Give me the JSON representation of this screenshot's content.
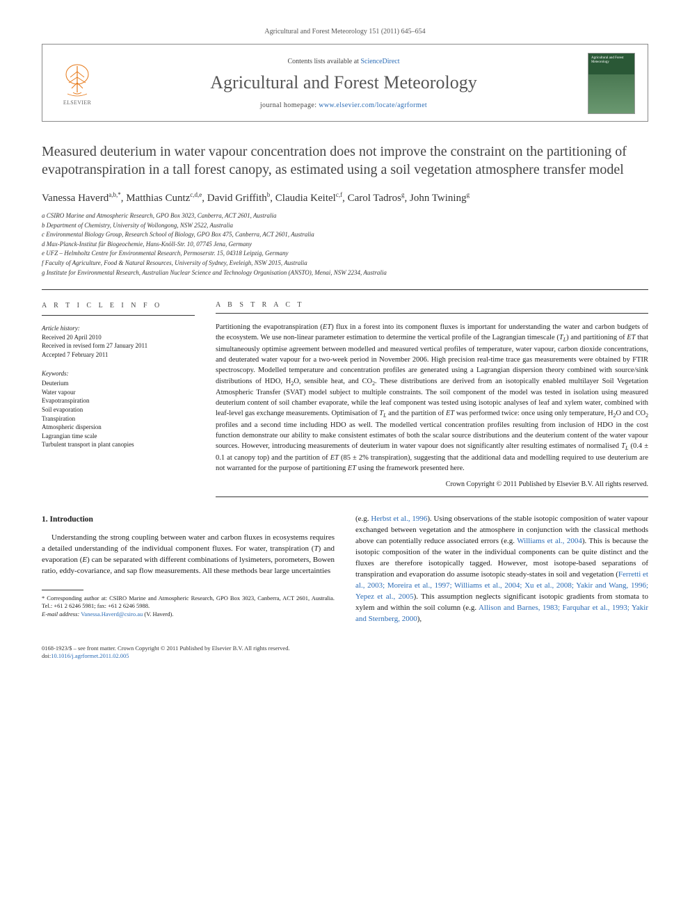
{
  "header": {
    "running": "Agricultural and Forest Meteorology 151 (2011) 645–654"
  },
  "masthead": {
    "contents_prefix": "Contents lists available at ",
    "contents_link": "ScienceDirect",
    "journal_title": "Agricultural and Forest Meteorology",
    "homepage_prefix": "journal homepage: ",
    "homepage_url": "www.elsevier.com/locate/agrformet",
    "publisher_label": "ELSEVIER",
    "cover_label": "Agricultural and Forest Meteorology"
  },
  "article": {
    "title": "Measured deuterium in water vapour concentration does not improve the constraint on the partitioning of evapotranspiration in a tall forest canopy, as estimated using a soil vegetation atmosphere transfer model",
    "authors_html": "Vanessa Haverd<sup>a,b,*</sup>, Matthias Cuntz<sup>c,d,e</sup>, David Griffith<sup>b</sup>, Claudia Keitel<sup>c,f</sup>, Carol Tadros<sup>g</sup>, John Twining<sup>g</sup>",
    "affiliations": [
      "a CSIRO Marine and Atmospheric Research, GPO Box 3023, Canberra, ACT 2601, Australia",
      "b Department of Chemistry, University of Wollongong, NSW 2522, Australia",
      "c Environmental Biology Group, Research School of Biology, GPO Box 475, Canberra, ACT 2601, Australia",
      "d Max-Planck-Institut für Biogeochemie, Hans-Knöll-Str. 10, 07745 Jena, Germany",
      "e UFZ – Helmholtz Centre for Environmental Research, Permoserstr. 15, 04318 Leipzig, Germany",
      "f Faculty of Agriculture, Food & Natural Resources, University of Sydney, Eveleigh, NSW 2015, Australia",
      "g Institute for Environmental Research, Australian Nuclear Science and Technology Organisation (ANSTO), Menai, NSW 2234, Australia"
    ]
  },
  "info": {
    "heading": "A R T I C L E   I N F O",
    "history_label": "Article history:",
    "history": [
      "Received 20 April 2010",
      "Received in revised form 27 January 2011",
      "Accepted 7 February 2011"
    ],
    "keywords_label": "Keywords:",
    "keywords": [
      "Deuterium",
      "Water vapour",
      "Evapotranspiration",
      "Soil evaporation",
      "Transpiration",
      "Atmospheric dispersion",
      "Lagrangian time scale",
      "Turbulent transport in plant canopies"
    ]
  },
  "abstract": {
    "heading": "A B S T R A C T",
    "text_html": "Partitioning the evapotranspiration (<em>ET</em>) flux in a forest into its component fluxes is important for understanding the water and carbon budgets of the ecosystem. We use non-linear parameter estimation to determine the vertical profile of the Lagrangian timescale (<em>T<sub>L</sub></em>) and partitioning of <em>ET</em> that simultaneously optimise agreement between modelled and measured vertical profiles of temperature, water vapour, carbon dioxide concentrations, and deuterated water vapour for a two-week period in November 2006. High precision real-time trace gas measurements were obtained by FTIR spectroscopy. Modelled temperature and concentration profiles are generated using a Lagrangian dispersion theory combined with source/sink distributions of HDO, H<sub>2</sub>O, sensible heat, and CO<sub>2</sub>. These distributions are derived from an isotopically enabled multilayer Soil Vegetation Atmospheric Transfer (SVAT) model subject to multiple constraints. The soil component of the model was tested in isolation using measured deuterium content of soil chamber evaporate, while the leaf component was tested using isotopic analyses of leaf and xylem water, combined with leaf-level gas exchange measurements. Optimisation of <em>T<sub>L</sub></em> and the partition of <em>ET</em> was performed twice: once using only temperature, H<sub>2</sub>O and CO<sub>2</sub> profiles and a second time including HDO as well. The modelled vertical concentration profiles resulting from inclusion of HDO in the cost function demonstrate our ability to make consistent estimates of both the scalar source distributions and the deuterium content of the water vapour sources. However, introducing measurements of deuterium in water vapour does not significantly alter resulting estimates of normalised <em>T<sub>L</sub></em> (0.4 ± 0.1 at canopy top) and the partition of <em>ET</em> (85 ± 2% transpiration), suggesting that the additional data and modelling required to use deuterium are not warranted for the purpose of partitioning <em>ET</em> using the framework presented here.",
    "copyright": "Crown Copyright © 2011 Published by Elsevier B.V. All rights reserved."
  },
  "body": {
    "section_heading": "1. Introduction",
    "col1_p1_html": "Understanding the strong coupling between water and carbon fluxes in ecosystems requires a detailed understanding of the individual component fluxes. For water, transpiration (<em>T</em>) and evaporation (<em>E</em>) can be separated with different combinations of lysimeters, porometers, Bowen ratio, eddy-covariance, and sap flow measurements. All these methods bear large uncertainties",
    "col2_p1_html": "(e.g. <span class=\"cite\">Herbst et al., 1996</span>). Using observations of the stable isotopic composition of water vapour exchanged between vegetation and the atmosphere in conjunction with the classical methods above can potentially reduce associated errors (e.g. <span class=\"cite\">Williams et al., 2004</span>). This is because the isotopic composition of the water in the individual components can be quite distinct and the fluxes are therefore isotopically tagged. However, most isotope-based separations of transpiration and evaporation do assume isotopic steady-states in soil and vegetation (<span class=\"cite\">Ferretti et al., 2003; Moreira et al., 1997; Williams et al., 2004; Xu et al., 2008; Yakir and Wang, 1996; Yepez et al., 2005</span>). This assumption neglects significant isotopic gradients from stomata to xylem and within the soil column (e.g. <span class=\"cite\">Allison and Barnes, 1983; Farquhar et al., 1993; Yakir and Sternberg, 2000</span>),"
  },
  "footnote": {
    "corresp": "* Corresponding author at: CSIRO Marine and Atmospheric Research, GPO Box 3023, Canberra, ACT 2601, Australia. Tel.: +61 2 6246 5981; fax: +61 2 6246 5988.",
    "email_label": "E-mail address:",
    "email": "Vanessa.Haverd@csiro.au",
    "email_suffix": "(V. Haverd)."
  },
  "footer": {
    "line1": "0168-1923/$ – see front matter. Crown Copyright © 2011 Published by Elsevier B.V. All rights reserved.",
    "doi_prefix": "doi:",
    "doi": "10.1016/j.agrformet.2011.02.005"
  },
  "colors": {
    "link": "#2a6bb5",
    "text": "#1a1a1a",
    "heading_gray": "#444444",
    "rule": "#333333"
  }
}
